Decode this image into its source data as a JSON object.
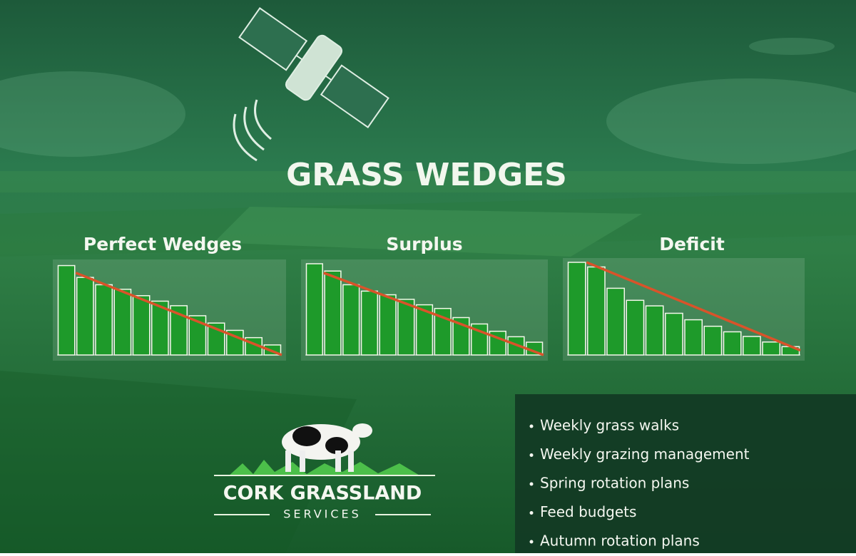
{
  "title": "GRASS WEDGES",
  "chart_data": [
    {
      "type": "bar",
      "title": "Perfect Wedges",
      "values": [
        98,
        85,
        77,
        72,
        65,
        59,
        54,
        43,
        35,
        27,
        19,
        11
      ],
      "color": "#1e9a2a",
      "target": [
        90,
        0
      ],
      "target_color": "#d9532a",
      "ylim": [
        0,
        100
      ]
    },
    {
      "type": "bar",
      "title": "Surplus",
      "values": [
        100,
        92,
        77,
        70,
        66,
        61,
        55,
        51,
        41,
        34,
        26,
        20,
        14
      ],
      "color": "#1e9a2a",
      "target": [
        90,
        0
      ],
      "target_color": "#d9532a",
      "ylim": [
        0,
        100
      ]
    },
    {
      "type": "bar",
      "title": "Deficit",
      "values": [
        100,
        95,
        72,
        59,
        53,
        45,
        38,
        31,
        25,
        20,
        14,
        9
      ],
      "color": "#1e9a2a",
      "target": [
        100,
        5
      ],
      "target_color": "#d9532a",
      "ylim": [
        0,
        100
      ]
    }
  ],
  "logo": {
    "name": "CORK GRASSLAND",
    "tagline": "SERVICES"
  },
  "services": [
    "Weekly grass walks",
    "Weekly grazing management",
    "Spring rotation plans",
    "Feed budgets",
    "Autumn rotation plans"
  ]
}
